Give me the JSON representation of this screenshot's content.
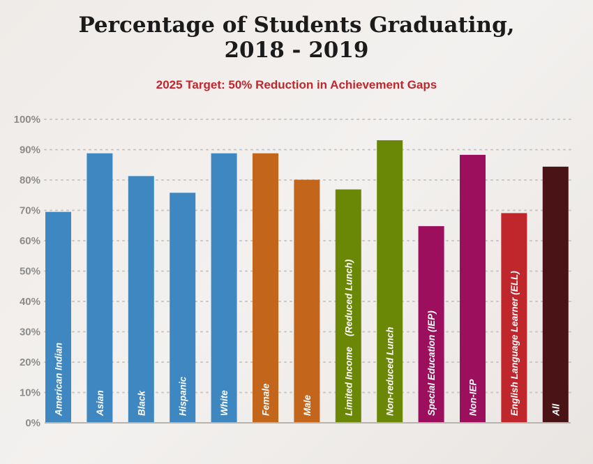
{
  "title_line1": "Percentage of Students Graduating,",
  "title_line2": "2018 - 2019",
  "subtitle": "2025 Target: 50% Reduction in Achievement Gaps",
  "chart_data": {
    "type": "bar",
    "title": "Percentage of Students Graduating, 2018 - 2019",
    "subtitle": "2025 Target: 50% Reduction in Achievement Gaps",
    "xlabel": "",
    "ylabel": "",
    "ylim": [
      0,
      100
    ],
    "yticks": [
      "0%",
      "10%",
      "20%",
      "30%",
      "40%",
      "50%",
      "60%",
      "70%",
      "80%",
      "90%",
      "100%"
    ],
    "grid": true,
    "categories": [
      "American Indian",
      "Asian",
      "Black",
      "Hispanic",
      "White",
      "Female",
      "Male",
      "Limited Income    (Reduced Lunch)",
      "Non-reduced Lunch",
      "Special Education (IEP)",
      "Non-IEP",
      "English Language Learner (ELL)",
      "All"
    ],
    "values": [
      69.5,
      88.8,
      81.3,
      75.8,
      88.8,
      88.8,
      80.1,
      76.9,
      93.1,
      64.8,
      88.3,
      69.1,
      84.4
    ],
    "colors": [
      "#3f87c0",
      "#3f87c0",
      "#3f87c0",
      "#3f87c0",
      "#3f87c0",
      "#c4651c",
      "#c4651c",
      "#6a8705",
      "#6a8705",
      "#9b0f5d",
      "#9b0f5d",
      "#c0272d",
      "#4a1416"
    ]
  }
}
